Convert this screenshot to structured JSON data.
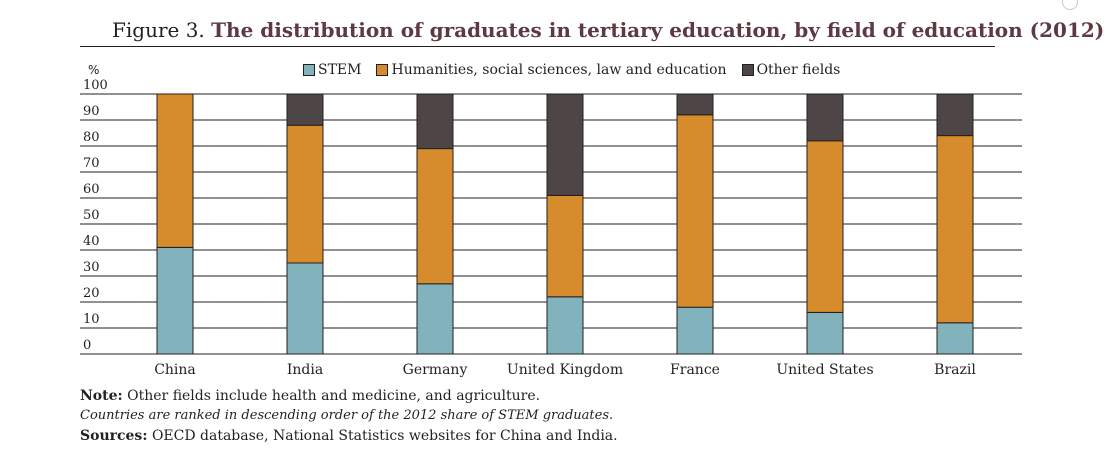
{
  "title": {
    "prefix": "Figure 3.",
    "text": "The distribution of graduates in tertiary education, by field of education (2012)"
  },
  "colors": {
    "STEM": "#82b3bd",
    "Humanities": "#d68c2c",
    "Other": "#4e4646",
    "title": "#5c3a3f"
  },
  "chart_data": {
    "type": "bar",
    "stacked": true,
    "unit_label": "%",
    "ylim": [
      0,
      100
    ],
    "yticks": [
      0,
      10,
      20,
      30,
      40,
      50,
      60,
      70,
      80,
      90,
      100
    ],
    "grid": true,
    "legend_position": "top",
    "categories": [
      "China",
      "India",
      "Germany",
      "United Kingdom",
      "France",
      "United States",
      "Brazil"
    ],
    "series": [
      {
        "name": "STEM",
        "values": [
          41,
          35,
          27,
          22,
          18,
          16,
          12
        ]
      },
      {
        "name": "Humanities, social sciences, law and education",
        "values": [
          59,
          53,
          52,
          39,
          74,
          66,
          72
        ]
      },
      {
        "name": "Other fields",
        "values": [
          0,
          12,
          21,
          39,
          8,
          18,
          16
        ]
      }
    ]
  },
  "notes": {
    "note_label": "Note:",
    "note_text": "Other fields include health and medicine, and agriculture.",
    "italic_text": "Countries are ranked in descending order of the 2012 share of STEM graduates.",
    "sources_label": "Sources:",
    "sources_text": "OECD database, National Statistics websites for China and India."
  }
}
